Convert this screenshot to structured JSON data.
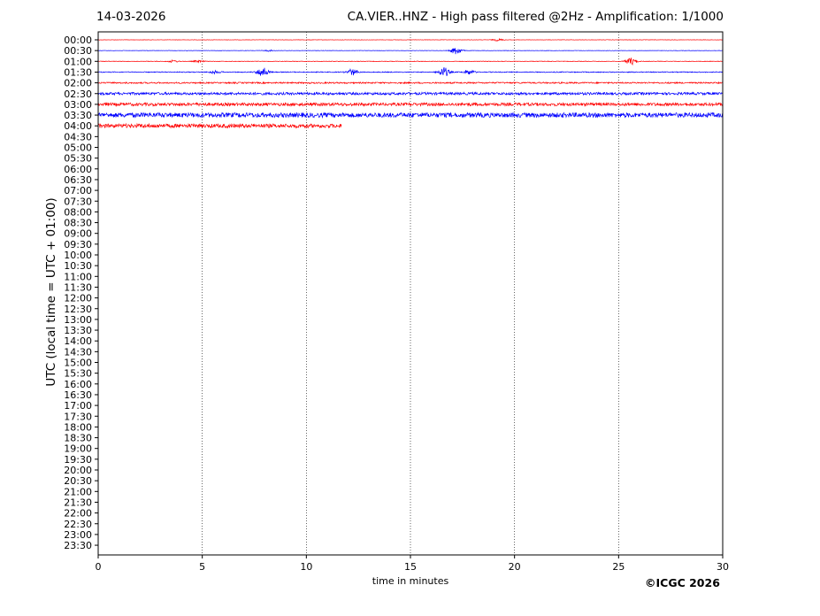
{
  "header": {
    "date": "14-03-2026",
    "title": "CA.VIER..HNZ - High pass filtered @2Hz - Amplification: 1/1000"
  },
  "footer": {
    "copyright": "©ICGC 2026"
  },
  "chart_data": {
    "type": "line",
    "subtype": "helicorder",
    "xlabel": "time in minutes",
    "ylabel": "UTC (local time = UTC + 01:00)",
    "xlim": [
      0,
      30
    ],
    "x_ticks": [
      0,
      5,
      10,
      15,
      20,
      25,
      30
    ],
    "x_tick_labels": [
      "0",
      "5",
      "10",
      "15",
      "20",
      "25",
      "30"
    ],
    "grid": "vertical dotted lines at x ticks",
    "trace_colors": [
      "#ff0000",
      "#0000ff"
    ],
    "rows": [
      "00:00",
      "00:30",
      "01:00",
      "01:30",
      "02:00",
      "02:30",
      "03:00",
      "03:30",
      "04:00",
      "04:30",
      "05:00",
      "05:30",
      "06:00",
      "06:30",
      "07:00",
      "07:30",
      "08:00",
      "08:30",
      "09:00",
      "09:30",
      "10:00",
      "10:30",
      "11:00",
      "11:30",
      "12:00",
      "12:30",
      "13:00",
      "13:30",
      "14:00",
      "14:30",
      "15:00",
      "15:30",
      "16:00",
      "16:30",
      "17:00",
      "17:30",
      "18:00",
      "18:30",
      "19:00",
      "19:30",
      "20:00",
      "20:30",
      "21:00",
      "21:30",
      "22:00",
      "22:30",
      "23:00",
      "23:30"
    ],
    "traces": [
      {
        "row": "00:00",
        "color": "#ff0000",
        "end_minute": 30,
        "noise_level": 0.2,
        "events": [
          {
            "minute": 19.2,
            "amplitude": 1.2
          }
        ]
      },
      {
        "row": "00:30",
        "color": "#0000ff",
        "end_minute": 30,
        "noise_level": 0.2,
        "events": [
          {
            "minute": 17.2,
            "amplitude": 4.5
          },
          {
            "minute": 8.2,
            "amplitude": 0.8
          }
        ]
      },
      {
        "row": "01:00",
        "color": "#ff0000",
        "end_minute": 30,
        "noise_level": 0.3,
        "events": [
          {
            "minute": 25.6,
            "amplitude": 4
          },
          {
            "minute": 3.6,
            "amplitude": 1.2
          },
          {
            "minute": 4.8,
            "amplitude": 1
          }
        ]
      },
      {
        "row": "01:30",
        "color": "#0000ff",
        "end_minute": 30,
        "noise_level": 0.5,
        "events": [
          {
            "minute": 7.9,
            "amplitude": 5.5
          },
          {
            "minute": 12.2,
            "amplitude": 3.5
          },
          {
            "minute": 16.6,
            "amplitude": 5.5
          },
          {
            "minute": 5.6,
            "amplitude": 1.5
          },
          {
            "minute": 17.8,
            "amplitude": 2.5
          }
        ]
      },
      {
        "row": "02:00",
        "color": "#ff0000",
        "end_minute": 30,
        "noise_level": 0.8,
        "events": []
      },
      {
        "row": "02:30",
        "color": "#0000ff",
        "end_minute": 30,
        "noise_level": 1.4,
        "events": []
      },
      {
        "row": "03:00",
        "color": "#ff0000",
        "end_minute": 30,
        "noise_level": 1.7,
        "events": []
      },
      {
        "row": "03:30",
        "color": "#0000ff",
        "end_minute": 30,
        "noise_level": 2.6,
        "events": []
      },
      {
        "row": "04:00",
        "color": "#ff0000",
        "end_minute": 11.7,
        "noise_level": 2.2,
        "events": []
      }
    ]
  }
}
